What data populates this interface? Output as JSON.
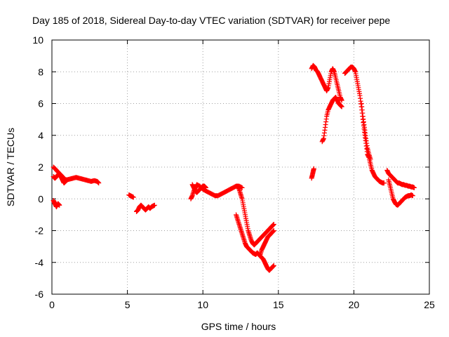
{
  "chart_data": {
    "type": "scatter",
    "title": "Day 185 of 2018, Sidereal Day-to-day VTEC variation (SDTVAR) for receiver pepe",
    "xlabel": "GPS time / hours",
    "ylabel": "SDTVAR / TECUs",
    "xlim": [
      0,
      25
    ],
    "ylim": [
      -6,
      10
    ],
    "xticks": [
      0,
      5,
      10,
      15,
      20,
      25
    ],
    "yticks": [
      -6,
      -4,
      -2,
      0,
      2,
      4,
      6,
      8,
      10
    ],
    "grid": true,
    "marker": "plus",
    "series": [
      {
        "name": "SDTVAR",
        "color": "#ff0000",
        "segments": [
          {
            "x": [
              0.1,
              0.2,
              0.3,
              0.4,
              0.5,
              0.6,
              0.7,
              0.8,
              0.9,
              1.0,
              1.2,
              1.4,
              1.6,
              1.8,
              2.0,
              2.2,
              2.4,
              2.6,
              2.8,
              3.0,
              3.1
            ],
            "y": [
              2.0,
              1.9,
              1.8,
              1.7,
              1.6,
              1.5,
              1.4,
              1.3,
              1.2,
              1.2,
              1.25,
              1.3,
              1.35,
              1.3,
              1.25,
              1.2,
              1.15,
              1.1,
              1.15,
              1.1,
              1.0
            ]
          },
          {
            "x": [
              0.1,
              0.15,
              0.2,
              0.25,
              0.3,
              0.35,
              0.4,
              0.45,
              0.5,
              0.55,
              0.6,
              0.65,
              0.7,
              0.75,
              0.8,
              0.85,
              0.9,
              0.95,
              1.0
            ],
            "y": [
              1.4,
              1.35,
              1.3,
              1.35,
              1.4,
              1.45,
              1.5,
              1.55,
              1.6,
              1.5,
              1.4,
              1.3,
              1.2,
              1.1,
              1.0,
              1.05,
              1.1,
              1.15,
              1.2
            ]
          },
          {
            "x": [
              0.1,
              0.15,
              0.2,
              0.25,
              0.3,
              0.35,
              0.4,
              0.45,
              0.5
            ],
            "y": [
              -0.1,
              -0.2,
              -0.3,
              -0.4,
              -0.5,
              -0.4,
              -0.3,
              -0.35,
              -0.4
            ]
          },
          {
            "x": [
              5.1,
              5.2,
              5.3,
              5.4
            ],
            "y": [
              0.25,
              0.2,
              0.15,
              0.1
            ]
          },
          {
            "x": [
              5.6,
              5.7,
              5.8,
              5.9,
              6.0,
              6.1,
              6.2,
              6.3,
              6.4,
              6.5,
              6.6,
              6.7,
              6.8
            ],
            "y": [
              -0.8,
              -0.7,
              -0.5,
              -0.4,
              -0.5,
              -0.6,
              -0.7,
              -0.6,
              -0.5,
              -0.6,
              -0.5,
              -0.45,
              -0.4
            ]
          },
          {
            "x": [
              9.2,
              9.3,
              9.4,
              9.5,
              9.6,
              9.8,
              10.0,
              10.2,
              10.4,
              10.6,
              10.8,
              11.0,
              11.2,
              11.4,
              11.6,
              11.8,
              12.0,
              12.2,
              12.4,
              12.6
            ],
            "y": [
              0.0,
              0.2,
              0.5,
              0.7,
              0.9,
              0.8,
              0.6,
              0.5,
              0.4,
              0.3,
              0.2,
              0.2,
              0.3,
              0.4,
              0.5,
              0.6,
              0.7,
              0.8,
              0.8,
              0.7
            ]
          },
          {
            "x": [
              9.3,
              9.4,
              9.5,
              9.6,
              9.7,
              9.8,
              9.9,
              10.0,
              10.1,
              10.2
            ],
            "y": [
              0.9,
              0.7,
              0.5,
              0.4,
              0.5,
              0.6,
              0.7,
              0.8,
              0.8,
              0.7
            ]
          },
          {
            "x": [
              12.3,
              12.4,
              12.5,
              12.6,
              12.7,
              12.8,
              12.9,
              13.0,
              13.1,
              13.2,
              13.3,
              13.4,
              13.5,
              13.6,
              13.7,
              13.8,
              13.9,
              14.0,
              14.1,
              14.2,
              14.3,
              14.4,
              14.5,
              14.6,
              14.7
            ],
            "y": [
              0.8,
              0.6,
              0.3,
              0.0,
              -0.5,
              -1.0,
              -1.5,
              -2.0,
              -2.3,
              -2.6,
              -2.8,
              -2.9,
              -2.8,
              -2.7,
              -2.6,
              -2.5,
              -2.4,
              -2.3,
              -2.2,
              -2.1,
              -2.0,
              -1.9,
              -1.8,
              -1.7,
              -1.6
            ]
          },
          {
            "x": [
              12.2,
              12.3,
              12.4,
              12.5,
              12.6,
              12.7,
              12.8,
              12.9,
              13.0,
              13.1,
              13.2,
              13.3,
              13.4,
              13.5,
              13.6,
              13.7,
              13.8,
              13.9,
              14.0,
              14.1,
              14.2,
              14.3,
              14.4,
              14.5,
              14.6,
              14.7
            ],
            "y": [
              -1.0,
              -1.3,
              -1.6,
              -1.9,
              -2.2,
              -2.5,
              -2.8,
              -3.0,
              -3.1,
              -3.2,
              -3.3,
              -3.4,
              -3.45,
              -3.5,
              -3.4,
              -3.5,
              -3.6,
              -3.7,
              -3.8,
              -4.0,
              -4.2,
              -4.4,
              -4.5,
              -4.4,
              -4.3,
              -4.2
            ]
          },
          {
            "x": [
              13.8,
              13.9,
              14.0,
              14.1,
              14.2,
              14.3,
              14.4,
              14.5,
              14.6,
              14.7
            ],
            "y": [
              -3.5,
              -3.2,
              -3.0,
              -2.8,
              -2.6,
              -2.4,
              -2.3,
              -2.2,
              -2.1,
              -2.0
            ]
          },
          {
            "x": [
              17.2,
              17.25,
              17.3,
              17.35
            ],
            "y": [
              1.3,
              1.5,
              1.7,
              1.9
            ]
          },
          {
            "x": [
              17.2,
              17.3,
              17.4,
              17.5,
              17.6,
              17.7,
              17.8,
              17.9,
              18.0,
              18.1,
              18.2,
              18.3,
              18.4,
              18.5,
              18.6,
              18.7,
              18.8,
              18.9,
              19.0,
              19.1,
              19.2
            ],
            "y": [
              8.2,
              8.4,
              8.3,
              8.1,
              8.0,
              7.8,
              7.6,
              7.4,
              7.2,
              7.0,
              6.8,
              7.0,
              7.5,
              8.0,
              8.2,
              8.0,
              7.6,
              7.2,
              6.8,
              6.4,
              6.2
            ]
          },
          {
            "x": [
              17.9,
              18.0,
              18.1,
              18.2,
              18.3,
              18.4,
              18.5,
              18.6,
              18.7,
              18.8,
              18.9,
              19.0,
              19.1,
              19.2
            ],
            "y": [
              3.6,
              3.8,
              4.5,
              5.2,
              5.6,
              5.8,
              6.0,
              6.2,
              6.3,
              6.4,
              6.2,
              6.0,
              5.9,
              5.8
            ]
          },
          {
            "x": [
              19.4,
              19.5,
              19.6,
              19.7,
              19.8,
              19.9,
              20.0,
              20.1,
              20.2,
              20.3,
              20.4,
              20.5,
              20.6,
              20.7,
              20.8,
              20.9,
              21.0,
              21.1,
              21.2,
              21.3,
              21.4,
              21.5,
              21.6,
              21.7,
              21.8,
              21.9,
              22.0
            ],
            "y": [
              7.9,
              8.0,
              8.1,
              8.2,
              8.3,
              8.3,
              8.2,
              8.0,
              7.5,
              7.0,
              6.5,
              5.8,
              5.0,
              4.2,
              3.5,
              2.8,
              2.6,
              2.2,
              1.8,
              1.6,
              1.4,
              1.3,
              1.2,
              1.1,
              1.05,
              1.0,
              1.0
            ]
          },
          {
            "x": [
              20.5,
              20.6,
              20.7,
              20.8,
              20.9,
              21.0,
              21.1
            ],
            "y": [
              6.0,
              5.2,
              4.5,
              3.8,
              3.2,
              2.8,
              2.5
            ]
          },
          {
            "x": [
              22.2,
              22.3,
              22.4,
              22.5,
              22.6,
              22.7,
              22.8,
              22.9,
              23.0,
              23.1,
              23.2,
              23.3,
              23.4,
              23.5,
              23.6,
              23.7,
              23.8,
              23.9,
              24.0
            ],
            "y": [
              1.8,
              1.6,
              1.5,
              1.4,
              1.3,
              1.2,
              1.1,
              1.0,
              1.0,
              0.95,
              0.9,
              0.9,
              0.85,
              0.85,
              0.8,
              0.8,
              0.75,
              0.75,
              0.7
            ]
          },
          {
            "x": [
              22.3,
              22.4,
              22.5,
              22.6,
              22.7,
              22.8,
              22.9,
              23.0,
              23.1,
              23.2,
              23.3,
              23.4,
              23.5,
              23.6,
              23.7,
              23.8,
              23.9
            ],
            "y": [
              1.2,
              0.8,
              0.4,
              0.0,
              -0.2,
              -0.35,
              -0.4,
              -0.3,
              -0.2,
              -0.1,
              0.0,
              0.1,
              0.15,
              0.2,
              0.2,
              0.25,
              0.2
            ]
          }
        ]
      }
    ]
  }
}
